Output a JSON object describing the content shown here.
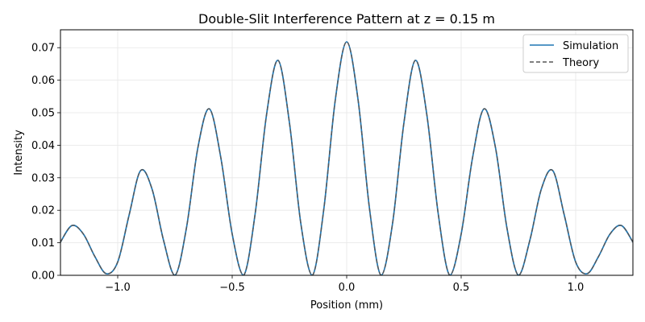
{
  "chart_data": {
    "type": "line",
    "title": "Double-Slit Interference Pattern at z = 0.15 m",
    "xlabel": "Position (mm)",
    "ylabel": "Intensity",
    "xlim": [
      -1.25,
      1.25
    ],
    "ylim": [
      0,
      0.0755
    ],
    "grid": true,
    "legend_placement": "top-right",
    "xticks": [
      -1.0,
      -0.5,
      0.0,
      0.5,
      1.0
    ],
    "xtick_labels": [
      "−1.0",
      "−0.5",
      "0.0",
      "0.5",
      "1.0"
    ],
    "yticks": [
      0,
      0.01,
      0.02,
      0.03,
      0.04,
      0.05,
      0.06,
      0.07
    ],
    "ytick_labels": [
      "0.00",
      "0.01",
      "0.02",
      "0.03",
      "0.04",
      "0.05",
      "0.06",
      "0.07"
    ],
    "series": [
      {
        "name": "Simulation",
        "color": "#1f77b4",
        "style": "solid",
        "x": [
          -1.25,
          -1.2,
          -1.15,
          -1.1,
          -1.05,
          -1.0,
          -0.95,
          -0.9,
          -0.85,
          -0.8,
          -0.75,
          -0.7,
          -0.65,
          -0.6,
          -0.55,
          -0.5,
          -0.45,
          -0.4,
          -0.35,
          -0.3,
          -0.25,
          -0.2,
          -0.15,
          -0.1,
          -0.05,
          0.0,
          0.05,
          0.1,
          0.15,
          0.2,
          0.25,
          0.3,
          0.35,
          0.4,
          0.45,
          0.5,
          0.55,
          0.6,
          0.65,
          0.7,
          0.75,
          0.8,
          0.85,
          0.9,
          0.95,
          1.0,
          1.05,
          1.1,
          1.15,
          1.2,
          1.25
        ],
        "y": [
          0.0102,
          0.0153,
          0.0127,
          0.0058,
          0.0005,
          0.0041,
          0.0186,
          0.0322,
          0.0265,
          0.0108,
          0.0,
          0.0145,
          0.0392,
          0.0512,
          0.0363,
          0.0127,
          0.0,
          0.0188,
          0.0494,
          0.0661,
          0.0469,
          0.0158,
          0.0,
          0.0203,
          0.0538,
          0.0718,
          0.0538,
          0.0203,
          0.0,
          0.0158,
          0.0469,
          0.0661,
          0.0494,
          0.0188,
          0.0,
          0.0127,
          0.0363,
          0.0512,
          0.0392,
          0.0145,
          0.0,
          0.0108,
          0.0265,
          0.0322,
          0.0186,
          0.0041,
          0.0005,
          0.0058,
          0.0127,
          0.0153,
          0.0102
        ]
      },
      {
        "name": "Theory",
        "color": "#555555",
        "style": "dashed",
        "x": [
          -1.25,
          -1.2,
          -1.15,
          -1.1,
          -1.05,
          -1.0,
          -0.95,
          -0.9,
          -0.85,
          -0.8,
          -0.75,
          -0.7,
          -0.65,
          -0.6,
          -0.55,
          -0.5,
          -0.45,
          -0.4,
          -0.35,
          -0.3,
          -0.25,
          -0.2,
          -0.15,
          -0.1,
          -0.05,
          0.0,
          0.05,
          0.1,
          0.15,
          0.2,
          0.25,
          0.3,
          0.35,
          0.4,
          0.45,
          0.5,
          0.55,
          0.6,
          0.65,
          0.7,
          0.75,
          0.8,
          0.85,
          0.9,
          0.95,
          1.0,
          1.05,
          1.1,
          1.15,
          1.2,
          1.25
        ],
        "y": [
          0.0102,
          0.0153,
          0.0127,
          0.0058,
          0.0005,
          0.0041,
          0.0186,
          0.0322,
          0.0265,
          0.0108,
          0.0,
          0.0145,
          0.0392,
          0.0512,
          0.0363,
          0.0127,
          0.0,
          0.0188,
          0.0494,
          0.0661,
          0.0469,
          0.0158,
          0.0,
          0.0203,
          0.0538,
          0.0718,
          0.0538,
          0.0203,
          0.0,
          0.0158,
          0.0469,
          0.0661,
          0.0494,
          0.0188,
          0.0,
          0.0127,
          0.0363,
          0.0512,
          0.0392,
          0.0145,
          0.0,
          0.0108,
          0.0265,
          0.0322,
          0.0186,
          0.0041,
          0.0005,
          0.0058,
          0.0127,
          0.0153,
          0.0102
        ]
      }
    ]
  }
}
